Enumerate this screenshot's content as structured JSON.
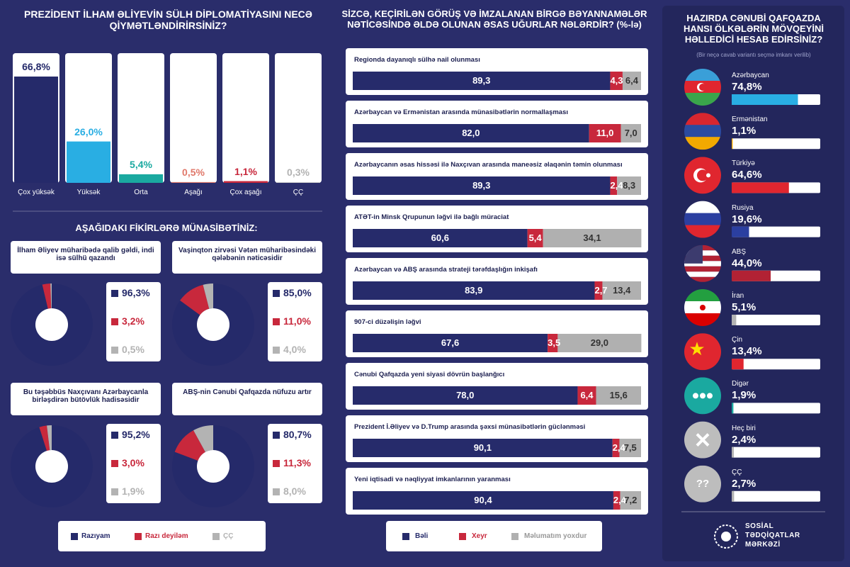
{
  "chart_data": [
    {
      "type": "column",
      "title": "PREZİDENT İLHAM ƏLİYEVİN SÜLH DİPLOMATİYASINI NECƏ QİYMƏTLƏNDİRİRSİNİZ?",
      "categories": [
        "Çox yüksək",
        "Yüksək",
        "Orta",
        "Aşağı",
        "Çox aşağı",
        "ÇÇ"
      ],
      "values": [
        66.8,
        26.0,
        5.4,
        0.5,
        1.1,
        0.3
      ],
      "value_labels": [
        "66,8%",
        "26,0%",
        "5,4%",
        "0,5%",
        "1,1%",
        "0,3%"
      ],
      "colors": [
        "#252a6a",
        "#29aee3",
        "#1aa9a0",
        "#e0786a",
        "#c8283c",
        "#b3b3b3"
      ]
    },
    {
      "type": "donut",
      "title": "AŞAĞIDAKI FİKİRLƏRƏ MÜNASİBƏTİNİZ:",
      "categories": [
        "Razıyam",
        "Razı deyiləm",
        "ÇÇ"
      ],
      "colors": [
        "#252a6a",
        "#c8283c",
        "#b3b3b3"
      ],
      "panels": [
        {
          "title": "İlham Əliyev müharibədə qalib gəldi, indi isə sülhü qazandı",
          "values": [
            96.3,
            3.2,
            0.5
          ],
          "value_labels": [
            "96,3%",
            "3,2%",
            "0,5%"
          ]
        },
        {
          "title": "Vaşinqton zirvəsi Vətən müharibəsindəki qələbənin nəticəsidir",
          "values": [
            85.0,
            11.0,
            4.0
          ],
          "value_labels": [
            "85,0%",
            "11,0%",
            "4,0%"
          ]
        },
        {
          "title": "Bu təşəbbüs Naxçıvanı Azərbaycanla birləşdirən bütövlük hadisəsidir",
          "values": [
            95.2,
            3.0,
            1.9
          ],
          "value_labels": [
            "95,2%",
            "3,0%",
            "1,9%"
          ]
        },
        {
          "title": "ABŞ-nin Cənubi Qafqazda nüfuzu artır",
          "values": [
            80.7,
            11.3,
            8.0
          ],
          "value_labels": [
            "80,7%",
            "11,3%",
            "8,0%"
          ]
        }
      ]
    },
    {
      "type": "stacked_bar",
      "title": "SİZCƏ, KEÇİRİLƏN GÖRÜŞ VƏ İMZALANAN BİRGƏ BƏYANNAMƏLƏR NƏTİCƏSİNDƏ ƏLDƏ OLUNAN ƏSAS UĞURLAR NƏLƏRDİR? (%-lə)",
      "categories": [
        "Regionda dayanıqlı sülhə nail olunması",
        "Azərbaycan və Ermənistan arasında münasibətlərin normallaşması",
        "Azərbaycanın əsas hissəsi ilə Naxçıvan arasında maneəsiz əlaqənin təmin olunması",
        "ATƏT-in Minsk Qrupunun ləğvi ilə bağlı müraciat",
        "Azərbaycan və ABŞ arasında strateji tərəfdaşlığın inkişafı",
        "907-ci düzəlişin ləğvi",
        "Cənubi Qafqazda yeni siyasi dövrün başlanğıcı",
        "Prezident İ.Əliyev və D.Trump arasında şəxsi münasibətlərin güclənməsi",
        "Yeni iqtisadi və nəqliyyat imkanlarının yaranması"
      ],
      "series": [
        {
          "name": "Bəli",
          "color": "#262b6b",
          "values": [
            89.3,
            82.0,
            89.3,
            60.6,
            83.9,
            67.6,
            78.0,
            90.1,
            90.4
          ],
          "value_labels": [
            "89,3",
            "82,0",
            "89,3",
            "60,6",
            "83,9",
            "67,6",
            "78,0",
            "90,1",
            "90,4"
          ]
        },
        {
          "name": "Xeyr",
          "color": "#c8283c",
          "values": [
            4.3,
            11.0,
            2.4,
            5.4,
            2.7,
            3.5,
            6.4,
            2.4,
            2.4
          ],
          "value_labels": [
            "4,3",
            "11,0",
            "2,4",
            "5,4",
            "2,7",
            "3,5",
            "6,4",
            "2,4",
            "2,4"
          ]
        },
        {
          "name": "Məlumatım yoxdur",
          "color": "#b0b0b0",
          "values": [
            6.4,
            7.0,
            8.3,
            34.1,
            13.4,
            29.0,
            15.6,
            7.5,
            7.2
          ],
          "value_labels": [
            "6,4",
            "7,0",
            "8,3",
            "34,1",
            "13,4",
            "29,0",
            "15,6",
            "7,5",
            "7,2"
          ]
        }
      ],
      "xlim": [
        0,
        100
      ]
    },
    {
      "type": "hbar",
      "title": "HAZIRDA CƏNUBİ QAFQAZDA HANSI ÖLKƏLƏRİN MÖVQEYİNİ HƏLLEDİCİ HESAB EDİRSİNİZ?",
      "subtitle": "(Bir neçə cavab variantı seçmə imkanı verilib)",
      "categories": [
        "Azərbaycan",
        "Ermənistan",
        "Türkiyə",
        "Rusiya",
        "ABŞ",
        "İran",
        "Çin",
        "Digər",
        "Heç biri",
        "ÇÇ"
      ],
      "values": [
        74.8,
        1.1,
        64.6,
        19.6,
        44.0,
        5.1,
        13.4,
        1.9,
        2.4,
        2.7
      ],
      "value_labels": [
        "74,8%",
        "1,1%",
        "64,6%",
        "19,6%",
        "44,0%",
        "5,1%",
        "13,4%",
        "1,9%",
        "2,4%",
        "2,7%"
      ],
      "colors": [
        "#29aee3",
        "#f2a900",
        "#e0262f",
        "#2b3fa0",
        "#b22234",
        "#b3b3b3",
        "#e0262f",
        "#1aa9a0",
        "#b3b3b3",
        "#b3b3b3"
      ],
      "xlim": [
        0,
        100
      ],
      "icon_label": "??"
    }
  ],
  "footer": {
    "logo_lines": [
      "SOSİAL",
      "TƏDQİQATLAR",
      "MƏRKƏZİ"
    ]
  }
}
